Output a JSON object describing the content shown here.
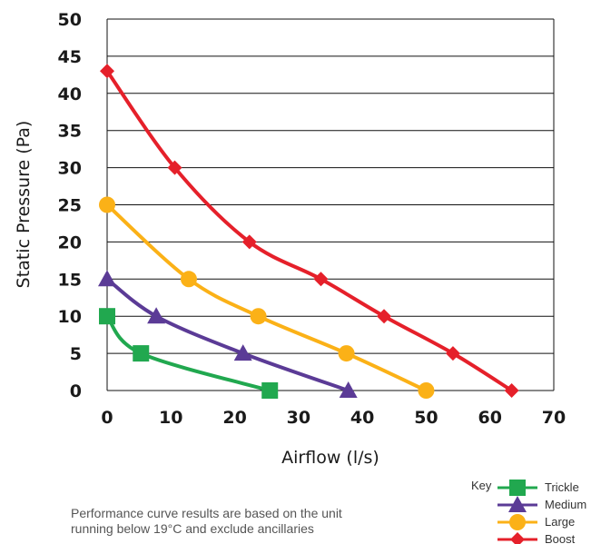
{
  "chart_data": {
    "type": "line",
    "title": "",
    "xlabel": "Airflow (l/s)",
    "ylabel": "Static Pressure (Pa)",
    "xlim": [
      0,
      70
    ],
    "ylim": [
      0,
      50
    ],
    "x_ticks": [
      0,
      10,
      20,
      30,
      40,
      50,
      60,
      70
    ],
    "y_ticks": [
      0,
      5,
      10,
      15,
      20,
      25,
      30,
      35,
      40,
      45,
      50
    ],
    "grid": "horizontal",
    "legend_title": "Key",
    "legend_position": "bottom-right",
    "series": [
      {
        "name": "Trickle",
        "color": "#21a84f",
        "marker": "square",
        "points": [
          [
            0,
            10
          ],
          [
            5.3,
            5
          ],
          [
            25.5,
            0
          ]
        ]
      },
      {
        "name": "Medium",
        "color": "#5b3b96",
        "marker": "triangle",
        "points": [
          [
            0,
            15
          ],
          [
            7.7,
            10
          ],
          [
            21.3,
            5
          ],
          [
            37.8,
            0
          ]
        ]
      },
      {
        "name": "Large",
        "color": "#fbb117",
        "marker": "circle",
        "points": [
          [
            0,
            25
          ],
          [
            12.8,
            15
          ],
          [
            23.7,
            10
          ],
          [
            37.5,
            5
          ],
          [
            50,
            0
          ]
        ]
      },
      {
        "name": "Boost",
        "color": "#e5202a",
        "marker": "diamond",
        "points": [
          [
            0,
            43
          ],
          [
            10.6,
            30
          ],
          [
            22.3,
            20
          ],
          [
            33.5,
            15
          ],
          [
            43.4,
            10
          ],
          [
            54.2,
            5
          ],
          [
            63.4,
            0
          ]
        ]
      }
    ]
  },
  "footnote": {
    "line1": "Performance curve results are based on the unit",
    "line2": "running below 19°C and exclude ancillaries"
  }
}
